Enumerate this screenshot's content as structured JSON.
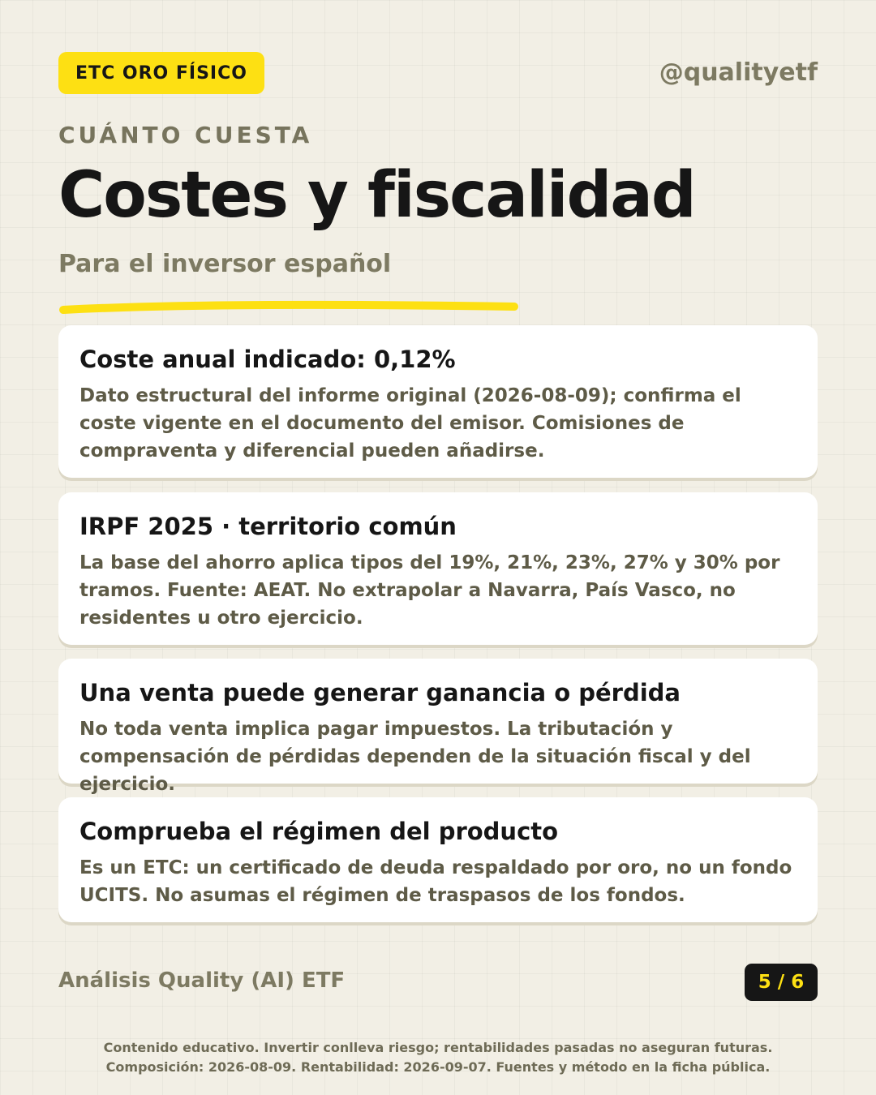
{
  "header": {
    "tag": "ETC ORO FÍSICO",
    "handle": "@qualityetf",
    "kicker": "CUÁNTO CUESTA",
    "title": "Costes y fiscalidad",
    "subtitle": "Para el inversor español"
  },
  "cards": [
    {
      "title": "Coste anual indicado: 0,12%",
      "body": "Dato estructural del informe original (2026-08-09); confirma el coste vigente en el documento del emisor. Comisiones de compraventa y diferencial pueden añadirse."
    },
    {
      "title": "IRPF 2025 · territorio común",
      "body": "La base del ahorro aplica tipos del 19%, 21%, 23%, 27% y 30% por tramos. Fuente: AEAT. No extrapolar a Navarra, País Vasco, no residentes u otro ejercicio."
    },
    {
      "title": "Una venta puede generar ganancia o pérdida",
      "body": "No toda venta implica pagar impuestos. La tributación y compensación de pérdidas dependen de la situación fiscal y del ejercicio."
    },
    {
      "title": "Comprueba el régimen del producto",
      "body": "Es un ETC: un certificado de deuda respaldado por oro, no un fondo UCITS. No asumas el régimen de traspasos de los fondos."
    }
  ],
  "footer": {
    "brand": "Análisis Quality (AI) ETF",
    "page": "5 / 6",
    "disclaimer_1": "Contenido educativo. Invertir conlleva riesgo; rentabilidades pasadas no aseguran futuras.",
    "disclaimer_2": "Composición: 2026-08-09. Rentabilidad: 2026-09-07. Fuentes y método en la ficha pública."
  },
  "colors": {
    "background": "#f2efe5",
    "accent_yellow": "#fde013",
    "text_dark": "#161616",
    "text_muted": "#7d7a62"
  }
}
